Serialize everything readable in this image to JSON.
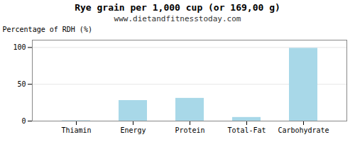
{
  "chart_data": {
    "type": "bar",
    "title": "Rye grain per 1,000 cup (or 169,00 g)",
    "subtitle": "www.dietandfitnesstoday.com",
    "categories": [
      "Thiamin",
      "Energy",
      "Protein",
      "Total-Fat",
      "Carbohydrate"
    ],
    "values": [
      0.5,
      28,
      31,
      5,
      99
    ],
    "color": "#a8d8e8",
    "ylabel": "Percentage of RDH (%)",
    "ylim": [
      0,
      110
    ],
    "yticks": [
      0,
      50,
      100
    ],
    "grid": true
  }
}
